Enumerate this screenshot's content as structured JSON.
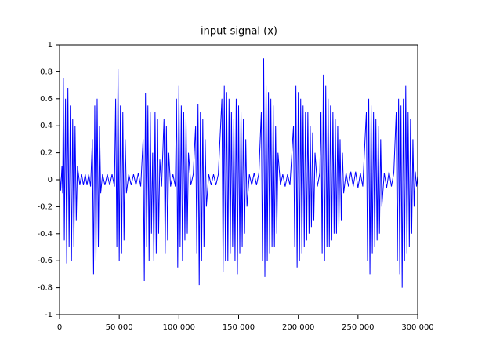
{
  "chart_data": {
    "type": "line",
    "title": "input signal (x)",
    "color": "#0000ff",
    "x": [
      0,
      1000,
      2000,
      2600,
      3200,
      4000,
      5000,
      6000,
      7000,
      8000,
      9000,
      10000,
      11000,
      12000,
      13000,
      14000,
      15000,
      17000,
      18500,
      20000,
      21500,
      23000,
      24500,
      26000,
      27500,
      28500,
      29500,
      30500,
      31500,
      32500,
      33500,
      34500,
      36000,
      38000,
      40000,
      42000,
      44000,
      46000,
      47000,
      48000,
      49000,
      50000,
      51000,
      52000,
      53000,
      54000,
      55000,
      56000,
      58000,
      60000,
      62000,
      64000,
      66000,
      68000,
      70000,
      71000,
      72000,
      73000,
      74000,
      75000,
      76000,
      77000,
      78000,
      79000,
      80000,
      81000,
      82000,
      83000,
      84000,
      85500,
      87500,
      88500,
      89500,
      90500,
      91500,
      93000,
      95000,
      97000,
      98000,
      99000,
      100000,
      101000,
      102000,
      103000,
      104000,
      105000,
      106000,
      107000,
      108000,
      110000,
      112000,
      114000,
      115000,
      116000,
      117000,
      118000,
      119000,
      120000,
      121000,
      122000,
      123000,
      125000,
      127000,
      129000,
      131000,
      133000,
      136000,
      137000,
      138000,
      139000,
      140000,
      141000,
      142000,
      143000,
      144000,
      145000,
      146000,
      147000,
      148000,
      149000,
      150000,
      151000,
      152000,
      153000,
      154000,
      155000,
      156000,
      157000,
      159000,
      161000,
      163000,
      165000,
      167000,
      169000,
      170000,
      171000,
      172000,
      173000,
      174000,
      175000,
      176000,
      177000,
      178000,
      179000,
      180000,
      181000,
      182000,
      183000,
      185000,
      187000,
      189000,
      191000,
      193000,
      196000,
      197000,
      198000,
      199000,
      200000,
      201000,
      202000,
      203000,
      204000,
      205000,
      206000,
      207000,
      208000,
      209000,
      210000,
      211000,
      212000,
      213000,
      214000,
      216000,
      218000,
      219000,
      220000,
      221000,
      222000,
      223000,
      224000,
      225000,
      226000,
      227000,
      228000,
      229000,
      230000,
      231000,
      232000,
      233000,
      234000,
      235000,
      236000,
      237000,
      238000,
      240000,
      242000,
      244000,
      246000,
      248000,
      250000,
      252000,
      254000,
      257000,
      258000,
      259000,
      260000,
      261000,
      262000,
      263000,
      264000,
      265000,
      266000,
      267000,
      268000,
      269000,
      270000,
      272000,
      274000,
      276000,
      278000,
      280000,
      282000,
      283000,
      284000,
      285000,
      286000,
      287000,
      288000,
      289000,
      290000,
      291000,
      292000,
      293000,
      294000,
      295000,
      296000,
      297000,
      298000,
      299000,
      300000
    ],
    "values": [
      0.08,
      -0.08,
      0.1,
      -0.1,
      0.75,
      -0.45,
      0.6,
      -0.62,
      0.68,
      -0.5,
      0.55,
      -0.6,
      0.45,
      -0.5,
      0.4,
      -0.3,
      0.1,
      -0.04,
      0.04,
      -0.04,
      0.04,
      -0.04,
      0.04,
      -0.05,
      0.3,
      -0.7,
      0.55,
      -0.6,
      0.6,
      -0.5,
      0.4,
      -0.1,
      0.04,
      -0.04,
      0.04,
      -0.04,
      0.04,
      -0.05,
      0.6,
      -0.5,
      0.82,
      -0.6,
      0.55,
      -0.55,
      0.5,
      -0.45,
      0.3,
      -0.1,
      0.04,
      -0.04,
      0.04,
      -0.04,
      0.05,
      -0.05,
      0.3,
      -0.75,
      0.64,
      -0.5,
      0.55,
      -0.6,
      0.5,
      -0.4,
      0.2,
      -0.6,
      0.5,
      -0.55,
      0.45,
      -0.4,
      0.15,
      -0.05,
      0.45,
      -0.55,
      0.4,
      -0.45,
      0.2,
      -0.05,
      0.04,
      -0.05,
      0.6,
      -0.65,
      0.7,
      -0.5,
      0.55,
      -0.6,
      0.5,
      -0.45,
      0.45,
      -0.4,
      0.2,
      -0.04,
      0.04,
      0.4,
      -0.55,
      0.56,
      -0.78,
      0.5,
      -0.6,
      0.45,
      -0.5,
      0.3,
      -0.2,
      0.04,
      -0.04,
      0.04,
      -0.04,
      0.04,
      0.6,
      -0.68,
      0.7,
      -0.6,
      0.65,
      -0.6,
      0.6,
      -0.55,
      0.5,
      -0.5,
      0.45,
      -0.6,
      0.6,
      -0.7,
      0.55,
      -0.55,
      0.5,
      -0.5,
      0.45,
      -0.4,
      0.3,
      -0.2,
      0.04,
      -0.04,
      0.05,
      -0.04,
      0.05,
      0.5,
      -0.6,
      0.9,
      -0.72,
      0.7,
      -0.6,
      0.65,
      -0.55,
      0.6,
      -0.5,
      0.55,
      -0.5,
      0.4,
      -0.4,
      0.2,
      -0.04,
      0.04,
      -0.05,
      0.04,
      -0.04,
      0.4,
      -0.5,
      0.7,
      -0.65,
      0.65,
      -0.6,
      0.6,
      -0.55,
      0.55,
      -0.5,
      0.5,
      -0.45,
      0.5,
      -0.4,
      0.4,
      -0.35,
      0.35,
      -0.3,
      0.2,
      -0.05,
      0.05,
      0.5,
      -0.55,
      0.78,
      -0.6,
      0.7,
      -0.5,
      0.6,
      -0.5,
      0.55,
      -0.45,
      0.5,
      -0.4,
      0.45,
      -0.4,
      0.4,
      -0.35,
      0.3,
      -0.3,
      0.2,
      -0.1,
      0.05,
      -0.05,
      0.06,
      -0.05,
      0.06,
      -0.06,
      0.05,
      -0.05,
      0.5,
      -0.6,
      0.6,
      -0.7,
      0.55,
      -0.55,
      0.5,
      -0.5,
      0.45,
      -0.45,
      0.4,
      -0.4,
      0.3,
      -0.2,
      0.05,
      -0.06,
      0.06,
      -0.05,
      0.05,
      0.5,
      -0.6,
      0.6,
      -0.7,
      0.55,
      -0.8,
      0.6,
      -0.6,
      0.7,
      -0.55,
      0.5,
      -0.5,
      0.45,
      -0.4,
      0.3,
      -0.2,
      0.06,
      -0.05,
      0.03
    ],
    "xlim": [
      0,
      300000
    ],
    "xticks": [
      0,
      {
        "value": 50000,
        "label": "50 000"
      },
      {
        "value": 100000,
        "label": "100 000"
      },
      {
        "value": 150000,
        "label": "150 000"
      },
      {
        "value": 200000,
        "label": "200 000"
      },
      {
        "value": 250000,
        "label": "250 000"
      },
      {
        "value": 300000,
        "label": "300 000"
      }
    ],
    "ylim": [
      -1,
      1
    ],
    "yticks": [
      -1,
      -0.8,
      -0.6,
      -0.4,
      -0.2,
      0,
      0.2,
      0.4,
      0.6,
      0.8,
      1
    ]
  }
}
